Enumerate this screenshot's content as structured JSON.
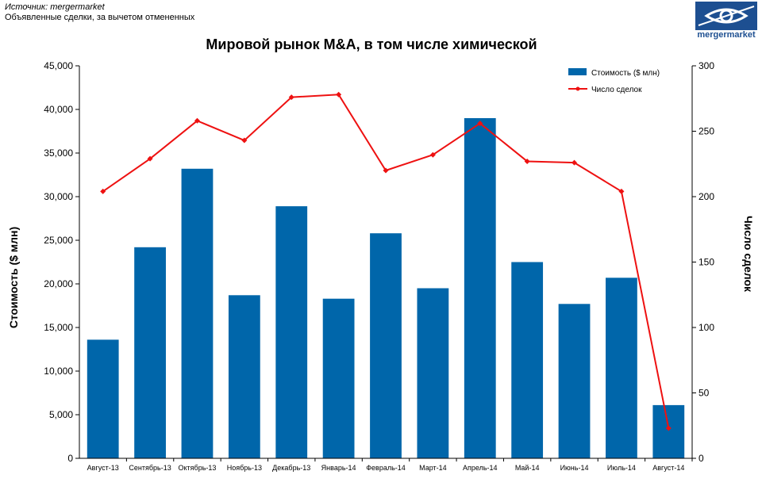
{
  "header": {
    "source_line": "Источник: mergermarket",
    "note_line": "Объявленные сделки, за вычетом отмененных",
    "logo_text": "mergermarket"
  },
  "colors": {
    "bar": "#0066aa",
    "line": "#ee1111",
    "logo": "#1d4f91"
  },
  "chart_data": {
    "type": "bar+line",
    "title": "Мировой рынок M&A, в том числе химической",
    "categories": [
      "Август-13",
      "Сентябрь-13",
      "Октябрь-13",
      "Ноябрь-13",
      "Декабрь-13",
      "Январь-14",
      "Февраль-14",
      "Март-14",
      "Апрель-14",
      "Май-14",
      "Июнь-14",
      "Июль-14",
      "Август-14"
    ],
    "series": [
      {
        "name": "Стоимость ($ млн)",
        "type": "bar",
        "axis": "left",
        "values": [
          13600,
          24200,
          33200,
          18700,
          28900,
          18300,
          25800,
          19500,
          39000,
          22500,
          17700,
          20700,
          6100
        ]
      },
      {
        "name": "Число сделок",
        "type": "line",
        "axis": "right",
        "values": [
          204,
          229,
          258,
          243,
          276,
          278,
          220,
          232,
          256,
          227,
          226,
          204,
          23
        ]
      }
    ],
    "ylabel_left": "Стоимость ($ млн)",
    "ylabel_right": "Число сделок",
    "ylim_left": [
      0,
      45000
    ],
    "ylim_right": [
      0,
      300
    ],
    "yticks_left": [
      "0",
      "5,000",
      "10,000",
      "15,000",
      "20,000",
      "25,000",
      "30,000",
      "35,000",
      "40,000",
      "45,000"
    ],
    "yticks_right": [
      "0",
      "50",
      "100",
      "150",
      "200",
      "250",
      "300"
    ],
    "grid": false,
    "legend_position": "top-right"
  }
}
